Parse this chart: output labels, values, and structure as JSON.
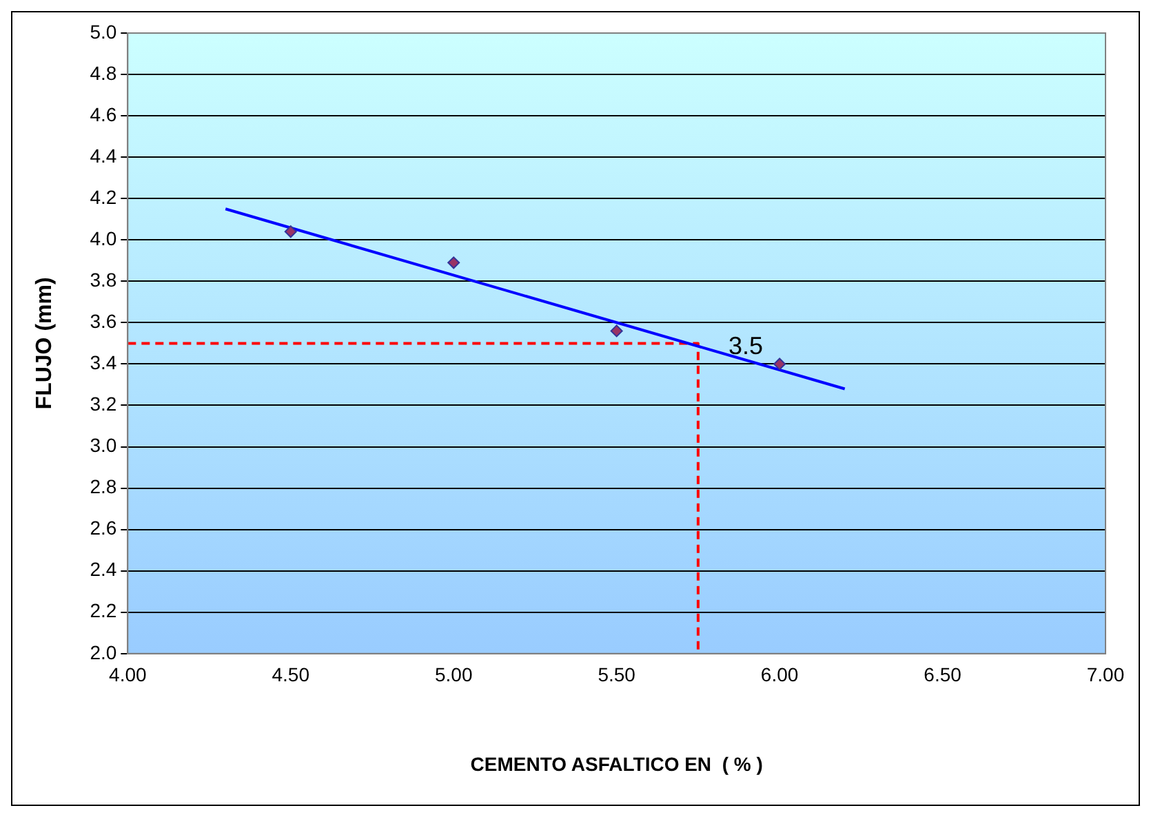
{
  "chart_data": {
    "type": "scatter",
    "xlabel": "CEMENTO ASFALTICO EN  ( % )",
    "ylabel": "FLUJO (mm)",
    "xlim": [
      4,
      7
    ],
    "xticks": [
      {
        "value": 4,
        "label": "4.00"
      },
      {
        "value": 4.5,
        "label": "4.50"
      },
      {
        "value": 5,
        "label": "5.00"
      },
      {
        "value": 5.5,
        "label": "5.50"
      },
      {
        "value": 6,
        "label": "6.00"
      },
      {
        "value": 6.5,
        "label": "6.50"
      },
      {
        "value": 7,
        "label": "7.00"
      }
    ],
    "ylim": [
      2,
      5
    ],
    "yticks": [
      {
        "value": 2,
        "label": "2.0"
      },
      {
        "value": 2.2,
        "label": "2.2"
      },
      {
        "value": 2.4,
        "label": "2.4"
      },
      {
        "value": 2.6,
        "label": "2.6"
      },
      {
        "value": 2.8,
        "label": "2.8"
      },
      {
        "value": 3,
        "label": "3.0"
      },
      {
        "value": 3.2,
        "label": "3.2"
      },
      {
        "value": 3.4,
        "label": "3.4"
      },
      {
        "value": 3.6,
        "label": "3.6"
      },
      {
        "value": 3.8,
        "label": "3.8"
      },
      {
        "value": 4,
        "label": "4.0"
      },
      {
        "value": 4.2,
        "label": "4.2"
      },
      {
        "value": 4.4,
        "label": "4.4"
      },
      {
        "value": 4.6,
        "label": "4.6"
      },
      {
        "value": 4.8,
        "label": "4.8"
      },
      {
        "value": 5,
        "label": "5.0"
      }
    ],
    "grid": "y",
    "legend": false,
    "series": [
      {
        "color": "#993366",
        "marker": "diamond",
        "x": [
          4.5,
          5,
          5.5,
          6
        ],
        "values": [
          4.04,
          3.89,
          3.56,
          3.4
        ]
      },
      {
        "type": "line",
        "color": "#0000ff",
        "marker": "none",
        "line_style": "solid",
        "x": [
          4.3,
          6.2
        ],
        "values": [
          4.15,
          3.28
        ]
      },
      {
        "type": "line",
        "color": "#ff0000",
        "marker": "none",
        "line_style": "dashed",
        "x": [
          4,
          5.75,
          5.75
        ],
        "values": [
          3.5,
          3.5,
          2
        ]
      }
    ],
    "annotations": [
      {
        "text": "3.5",
        "x": 5.75,
        "y": 3.5
      }
    ]
  }
}
